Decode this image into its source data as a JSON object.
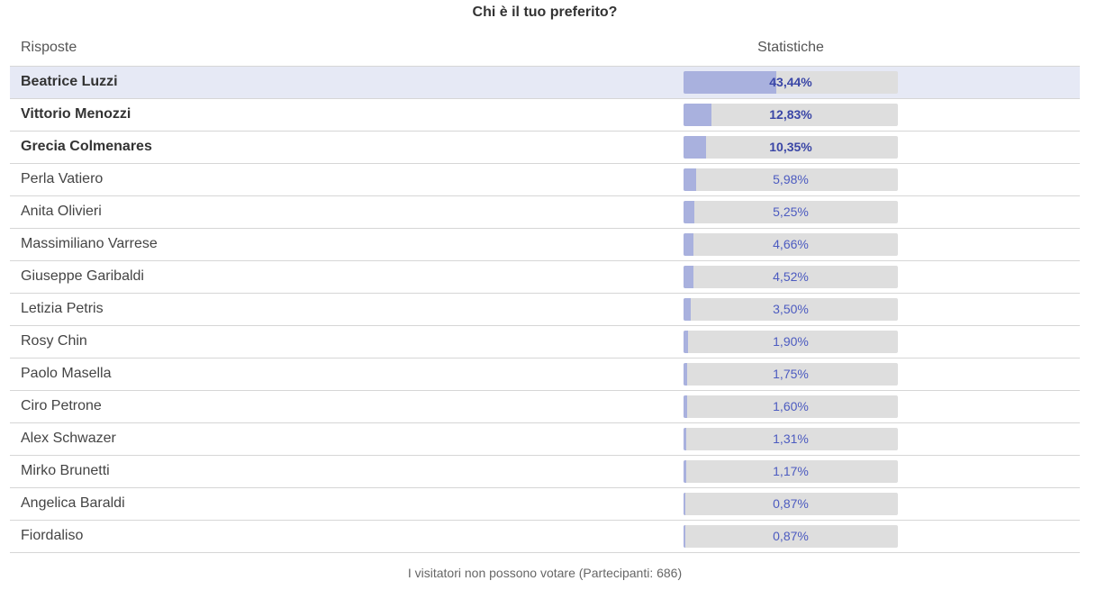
{
  "poll": {
    "title": "Chi è il tuo preferito?",
    "header_answers": "Risposte",
    "header_stats": "Statistiche",
    "footer": "I visitatori non possono votare (Partecipanti: 686)",
    "colors": {
      "bar_fill": "#a9b1de",
      "bar_track": "#dedede",
      "highlight_row": "#e6e9f5",
      "percent_text": "#4c5bc0"
    },
    "rows": [
      {
        "name": "Beatrice Luzzi",
        "percent_label": "43,44%",
        "value": 43.44,
        "bold": true,
        "highlight": true
      },
      {
        "name": "Vittorio Menozzi",
        "percent_label": "12,83%",
        "value": 12.83,
        "bold": true,
        "highlight": false
      },
      {
        "name": "Grecia Colmenares",
        "percent_label": "10,35%",
        "value": 10.35,
        "bold": true,
        "highlight": false
      },
      {
        "name": "Perla Vatiero",
        "percent_label": "5,98%",
        "value": 5.98,
        "bold": false,
        "highlight": false
      },
      {
        "name": "Anita Olivieri",
        "percent_label": "5,25%",
        "value": 5.25,
        "bold": false,
        "highlight": false
      },
      {
        "name": "Massimiliano Varrese",
        "percent_label": "4,66%",
        "value": 4.66,
        "bold": false,
        "highlight": false
      },
      {
        "name": "Giuseppe Garibaldi",
        "percent_label": "4,52%",
        "value": 4.52,
        "bold": false,
        "highlight": false
      },
      {
        "name": "Letizia Petris",
        "percent_label": "3,50%",
        "value": 3.5,
        "bold": false,
        "highlight": false
      },
      {
        "name": "Rosy Chin",
        "percent_label": "1,90%",
        "value": 1.9,
        "bold": false,
        "highlight": false
      },
      {
        "name": "Paolo Masella",
        "percent_label": "1,75%",
        "value": 1.75,
        "bold": false,
        "highlight": false
      },
      {
        "name": "Ciro Petrone",
        "percent_label": "1,60%",
        "value": 1.6,
        "bold": false,
        "highlight": false
      },
      {
        "name": "Alex Schwazer",
        "percent_label": "1,31%",
        "value": 1.31,
        "bold": false,
        "highlight": false
      },
      {
        "name": "Mirko Brunetti",
        "percent_label": "1,17%",
        "value": 1.17,
        "bold": false,
        "highlight": false
      },
      {
        "name": "Angelica Baraldi",
        "percent_label": "0,87%",
        "value": 0.87,
        "bold": false,
        "highlight": false
      },
      {
        "name": "Fiordaliso",
        "percent_label": "0,87%",
        "value": 0.87,
        "bold": false,
        "highlight": false
      }
    ]
  }
}
